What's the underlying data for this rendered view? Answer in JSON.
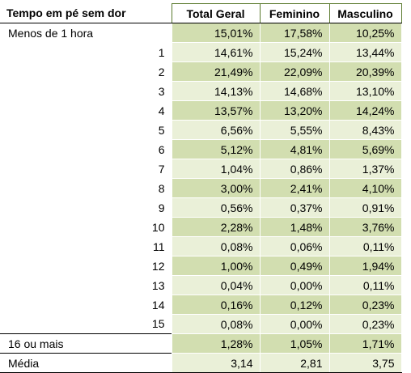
{
  "table": {
    "headers": [
      "Tempo em pé sem dor",
      "Total Geral",
      "Feminino",
      "Masculino"
    ],
    "rows": [
      {
        "label": "Menos de 1 hora",
        "total": "15,01%",
        "feminino": "17,58%",
        "masculino": "10,25%",
        "align": "left"
      },
      {
        "label": "1",
        "total": "14,61%",
        "feminino": "15,24%",
        "masculino": "13,44%",
        "align": "right"
      },
      {
        "label": "2",
        "total": "21,49%",
        "feminino": "22,09%",
        "masculino": "20,39%",
        "align": "right"
      },
      {
        "label": "3",
        "total": "14,13%",
        "feminino": "14,68%",
        "masculino": "13,10%",
        "align": "right"
      },
      {
        "label": "4",
        "total": "13,57%",
        "feminino": "13,20%",
        "masculino": "14,24%",
        "align": "right"
      },
      {
        "label": "5",
        "total": "6,56%",
        "feminino": "5,55%",
        "masculino": "8,43%",
        "align": "right"
      },
      {
        "label": "6",
        "total": "5,12%",
        "feminino": "4,81%",
        "masculino": "5,69%",
        "align": "right"
      },
      {
        "label": "7",
        "total": "1,04%",
        "feminino": "0,86%",
        "masculino": "1,37%",
        "align": "right"
      },
      {
        "label": "8",
        "total": "3,00%",
        "feminino": "2,41%",
        "masculino": "4,10%",
        "align": "right"
      },
      {
        "label": "9",
        "total": "0,56%",
        "feminino": "0,37%",
        "masculino": "0,91%",
        "align": "right"
      },
      {
        "label": "10",
        "total": "2,28%",
        "feminino": "1,48%",
        "masculino": "3,76%",
        "align": "right"
      },
      {
        "label": "11",
        "total": "0,08%",
        "feminino": "0,06%",
        "masculino": "0,11%",
        "align": "right"
      },
      {
        "label": "12",
        "total": "1,00%",
        "feminino": "0,49%",
        "masculino": "1,94%",
        "align": "right"
      },
      {
        "label": "13",
        "total": "0,04%",
        "feminino": "0,00%",
        "masculino": "0,11%",
        "align": "right"
      },
      {
        "label": "14",
        "total": "0,16%",
        "feminino": "0,12%",
        "masculino": "0,23%",
        "align": "right"
      },
      {
        "label": "15",
        "total": "0,08%",
        "feminino": "0,00%",
        "masculino": "0,23%",
        "align": "right"
      },
      {
        "label": "16 ou mais",
        "total": "1,28%",
        "feminino": "1,05%",
        "masculino": "1,71%",
        "align": "left"
      },
      {
        "label": "Média",
        "total": "3,14",
        "feminino": "2,81",
        "masculino": "3,75",
        "align": "left"
      }
    ]
  },
  "colors": {
    "row_dark": "#d2deb0",
    "row_light": "#eaf0d8",
    "header_border": "#5a7a2e"
  }
}
